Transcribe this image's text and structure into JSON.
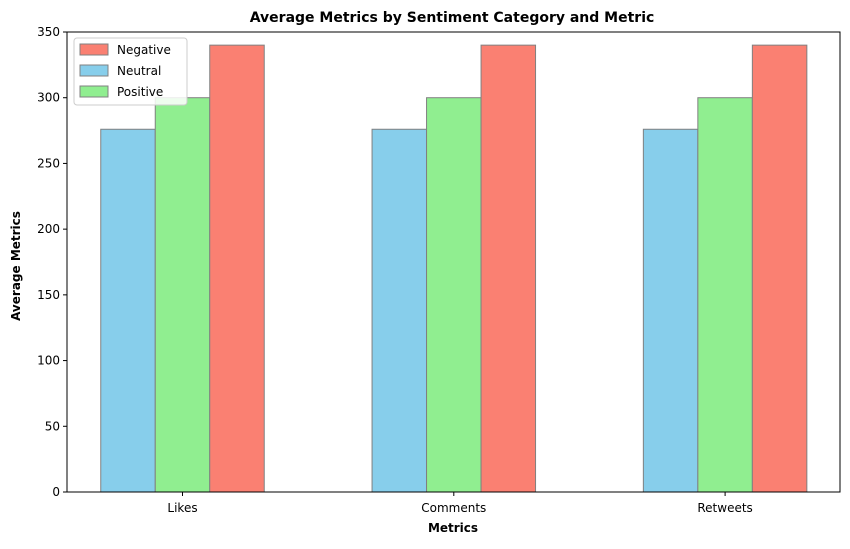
{
  "chart_data": {
    "type": "bar",
    "title": "Average Metrics by Sentiment Category and Metric",
    "xlabel": "Metrics",
    "ylabel": "Average Metrics",
    "categories": [
      "Likes",
      "Comments",
      "Retweets"
    ],
    "ylim": [
      0,
      350
    ],
    "yticks": [
      0,
      50,
      100,
      150,
      200,
      250,
      300,
      350
    ],
    "grid": false,
    "legend_position": "top-left",
    "legend_order": [
      "Negative",
      "Neutral",
      "Positive"
    ],
    "bar_order": [
      "Neutral",
      "Positive",
      "Negative"
    ],
    "series": [
      {
        "name": "Negative",
        "color": "#fa8072",
        "values": [
          340,
          340,
          340
        ]
      },
      {
        "name": "Neutral",
        "color": "#87ceeb",
        "values": [
          276,
          276,
          276
        ]
      },
      {
        "name": "Positive",
        "color": "#90ee90",
        "values": [
          300,
          300,
          300
        ]
      }
    ],
    "edge_color": "#808080"
  }
}
